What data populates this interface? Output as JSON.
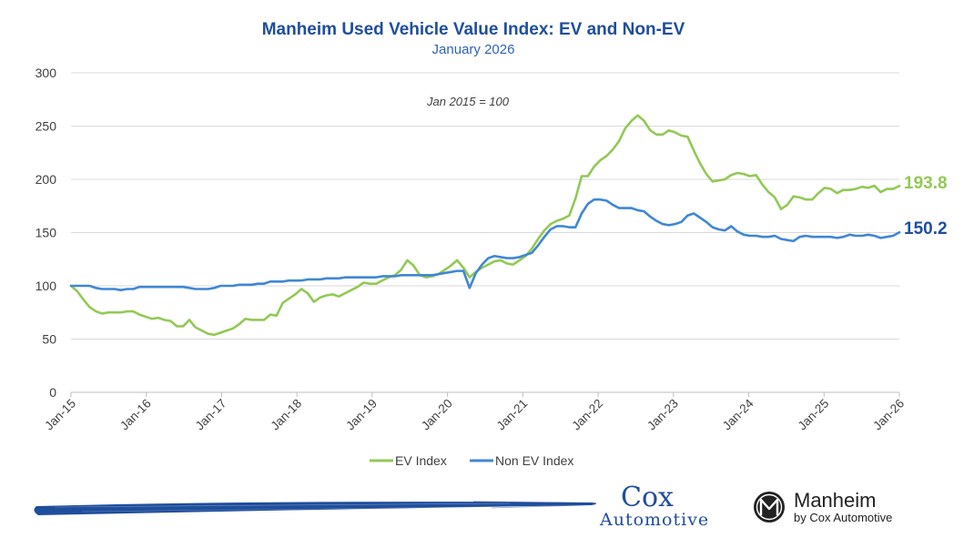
{
  "chart_data": {
    "type": "line",
    "title": "Manheim Used Vehicle Value Index: EV and Non-EV",
    "subtitle": "January 2026",
    "annotation": "Jan 2015 = 100",
    "ylim": [
      0,
      300
    ],
    "yticks": [
      0,
      50,
      100,
      150,
      200,
      250,
      300
    ],
    "grid": true,
    "legend_position": "bottom",
    "x_start": "Jan-15",
    "x_end": "Jan-26",
    "x_tick_labels": [
      "Jan-15",
      "Jan-16",
      "Jan-17",
      "Jan-18",
      "Jan-19",
      "Jan-20",
      "Jan-21",
      "Jan-22",
      "Jan-23",
      "Jan-24",
      "Jan-25",
      "Jan-26"
    ],
    "series": [
      {
        "name": "EV Index",
        "color": "#92c954",
        "end_label": "193.8",
        "values": [
          100,
          95,
          87,
          80,
          76,
          74,
          75,
          75,
          75,
          76,
          76,
          73,
          71,
          69,
          70,
          68,
          67,
          62,
          62,
          68,
          61,
          58,
          55,
          54,
          56,
          58,
          60,
          64,
          69,
          68,
          68,
          68,
          73,
          72,
          84,
          88,
          92,
          97,
          93,
          85,
          89,
          91,
          92,
          90,
          93,
          96,
          99,
          103,
          102,
          102,
          105,
          108,
          110,
          115,
          124,
          119,
          110,
          108,
          109,
          111,
          115,
          119,
          124,
          117,
          108,
          113,
          117,
          120,
          123,
          124,
          121,
          120,
          124,
          128,
          135,
          144,
          152,
          158,
          161,
          163,
          166,
          182,
          203,
          203,
          212,
          218,
          222,
          228,
          236,
          248,
          255,
          260,
          255,
          246,
          242,
          242,
          246,
          244,
          241,
          240,
          227,
          215,
          205,
          198,
          199,
          200,
          204,
          206,
          205,
          203,
          204,
          195,
          188,
          183,
          172,
          176,
          184,
          183,
          181,
          181,
          187,
          192,
          191,
          187,
          190,
          190,
          191,
          193,
          192,
          194,
          188,
          191,
          191,
          193.8
        ]
      },
      {
        "name": "Non EV Index",
        "color": "#3f87d4",
        "end_label": "150.2",
        "values": [
          100,
          100,
          100,
          100,
          98,
          97,
          97,
          97,
          96,
          97,
          97,
          99,
          99,
          99,
          99,
          99,
          99,
          99,
          99,
          98,
          97,
          97,
          97,
          98,
          100,
          100,
          100,
          101,
          101,
          101,
          102,
          102,
          104,
          104,
          104,
          105,
          105,
          105,
          106,
          106,
          106,
          107,
          107,
          107,
          108,
          108,
          108,
          108,
          108,
          108,
          109,
          109,
          109,
          110,
          110,
          110,
          110,
          110,
          110,
          111,
          112,
          113,
          114,
          114,
          98,
          112,
          120,
          126,
          128,
          127,
          126,
          126,
          127,
          129,
          131,
          138,
          146,
          153,
          156,
          156,
          155,
          155,
          168,
          177,
          181,
          181,
          180,
          176,
          173,
          173,
          173,
          171,
          170,
          165,
          161,
          158,
          157,
          158,
          160,
          166,
          168,
          164,
          160,
          155,
          153,
          152,
          156,
          151,
          148,
          147,
          147,
          146,
          146,
          147,
          144,
          143,
          142,
          146,
          147,
          146,
          146,
          146,
          146,
          145,
          146,
          148,
          147,
          147,
          148,
          147,
          145,
          146,
          147,
          150.2
        ]
      }
    ]
  },
  "legend": {
    "items": [
      {
        "label": "EV Index",
        "color": "#92c954"
      },
      {
        "label": "Non EV Index",
        "color": "#3f87d4"
      }
    ]
  },
  "logos": {
    "cox_top": "Cox",
    "cox_bottom": "Automotive",
    "manheim_name": "Manheim",
    "manheim_sub": "by Cox Automotive",
    "manheim_icon": "manheim-m-icon",
    "brand_color": "#1f4e9c"
  },
  "colors": {
    "ev_label": "#92c954",
    "nonev_label": "#1f4e9c",
    "grid": "#d9d9d9",
    "brush": "#1f4e9c"
  }
}
